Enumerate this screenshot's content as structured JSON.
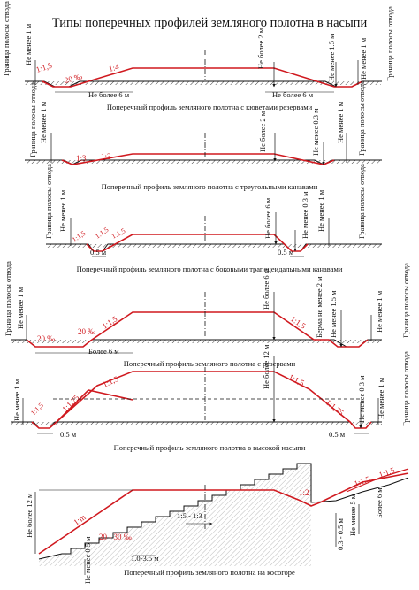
{
  "title": "Типы поперечных профилей земляного полотна в насыпи",
  "colors": {
    "profile": "#d0191f",
    "lines": "#111111",
    "ground": "#111111"
  },
  "profiles": [
    {
      "id": "p1",
      "caption": "Поперечный профиль земляного полотна с кюветами резервами",
      "labels": {
        "boundary_l": "Граница полосы отвода",
        "boundary_r": "Граница полосы отвода",
        "min1m_l": "Не менее 1 м",
        "min1m_r": "Не менее 1 м",
        "max2m": "Не более 2 м",
        "min15m": "Не менее 1.5 м",
        "max6m_l": "Не более 6 м",
        "max6m_r": "Не более 6 м",
        "slope_a": "1:1,5",
        "slope_b": "1:4",
        "grade": "20 ‰"
      }
    },
    {
      "id": "p2",
      "caption": "Поперечный профиль земляного полотна с треугольными канавами",
      "labels": {
        "boundary_l": "Граница полосы отвода",
        "boundary_r": "Граница полосы отвода",
        "min1m_l": "Не менее 1 м",
        "min1m_r": "Не менее 1 м",
        "max2m": "Не более 2 м",
        "min03m": "Не менее 0.3 м",
        "slope_a": "1:3",
        "slope_b": "1:3"
      }
    },
    {
      "id": "p3",
      "caption": "Поперечный профиль земляного полотна с боковыми трапецеидальными канавами",
      "labels": {
        "boundary_l": "Граница полосы отвода",
        "boundary_r": "Граница полосы отвода",
        "min1m_l": "Не менее 1 м",
        "min1m_r": "Не менее 1 м",
        "max6m": "Не более 6 м",
        "min03m": "Не менее 0.3 м",
        "w05_l": "0.5 м",
        "w05_r": "0.5 м",
        "slope_a": "1:1,5",
        "slope_b": "1:1,5",
        "slope_c": "1:1,5"
      }
    },
    {
      "id": "p4",
      "caption": "Поперечный профиль земляного полотна с резервами",
      "labels": {
        "boundary_l": "Граница полосы отвода",
        "boundary_r": "Граница полосы отвода",
        "min1m_l": "Не менее 1 м",
        "min1m_r": "Не менее 1 м",
        "max6m": "Не более 6 м",
        "berm2m": "Берма не менее 2 м",
        "min15m": "Не менее 1.5 м",
        "w6m": "Более 6 м",
        "slope_l": "1:1,5",
        "slope_r": "1:1,5",
        "grade_l": "20 ‰",
        "grade_r": "20 ‰"
      }
    },
    {
      "id": "p5",
      "caption": "Поперечный профиль земляного полотна в высокой насыпи",
      "labels": {
        "boundary_l": "Граница полосы отвода",
        "boundary_r": "Граница полосы отвода",
        "min1m_l": "Не менее 1 м",
        "min1m_r": "Не менее 1 м",
        "max12m": "Не более 12 м",
        "min03m": "Не менее 0.3 м",
        "w05_l": "0.5 м",
        "w05_r": "0.5 м",
        "slope_a": "1:1,5",
        "slope_b": "1:1,75",
        "slope_c": "1:1,5",
        "slope_d": "1:1,75",
        "slope_e": "1:1,5"
      }
    },
    {
      "id": "p6",
      "caption": "Поперечный профиль земляного полотна на косогоре",
      "labels": {
        "max12m": "Не более 12 м",
        "min05m": "Не менее 0.5 м",
        "min5m": "Не менее 5 м",
        "more6m": "Более 6 м",
        "h03": "0.3 - 0.5 м",
        "steps": "1:5 - 1:3",
        "step_w": "1.0-3.5 м",
        "grade": "20 - 30 ‰",
        "slope_m": "1:m",
        "slope_2": "1:2",
        "slope_15": "1:1,5",
        "slope_15b": "1:1,5"
      }
    }
  ]
}
